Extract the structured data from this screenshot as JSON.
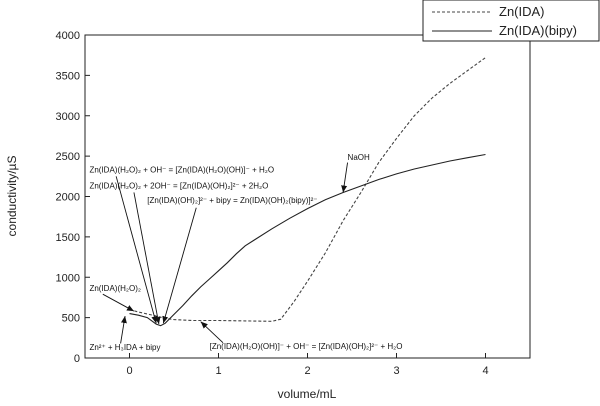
{
  "chart_data": {
    "type": "line",
    "xlabel": "volume/mL",
    "ylabel": "conductivity/µS",
    "xlim": [
      -0.5,
      4.5
    ],
    "ylim": [
      0,
      4000
    ],
    "xticks": [
      0,
      1,
      2,
      3,
      4
    ],
    "yticks": [
      0,
      500,
      1000,
      1500,
      2000,
      2500,
      3000,
      3500,
      4000
    ],
    "grid": false,
    "legend_position": "top-right",
    "series": [
      {
        "name": "Zn(IDA)",
        "style": "dashed",
        "color": "#444444",
        "points": [
          [
            0.0,
            600
          ],
          [
            0.1,
            570
          ],
          [
            0.2,
            545
          ],
          [
            0.3,
            520
          ],
          [
            0.4,
            490
          ],
          [
            0.5,
            475
          ],
          [
            0.7,
            465
          ],
          [
            1.0,
            465
          ],
          [
            1.3,
            460
          ],
          [
            1.6,
            455
          ],
          [
            1.7,
            480
          ],
          [
            1.85,
            700
          ],
          [
            2.0,
            950
          ],
          [
            2.2,
            1300
          ],
          [
            2.4,
            1700
          ],
          [
            2.6,
            2050
          ],
          [
            2.8,
            2420
          ],
          [
            3.0,
            2720
          ],
          [
            3.2,
            3000
          ],
          [
            3.4,
            3220
          ],
          [
            3.6,
            3400
          ],
          [
            3.8,
            3560
          ],
          [
            4.0,
            3720
          ]
        ]
      },
      {
        "name": "Zn(IDA)(bipy)",
        "style": "solid",
        "color": "#222222",
        "points": [
          [
            0.0,
            550
          ],
          [
            0.1,
            530
          ],
          [
            0.2,
            500
          ],
          [
            0.3,
            420
          ],
          [
            0.35,
            400
          ],
          [
            0.4,
            430
          ],
          [
            0.5,
            540
          ],
          [
            0.6,
            650
          ],
          [
            0.7,
            770
          ],
          [
            0.8,
            880
          ],
          [
            0.9,
            980
          ],
          [
            1.0,
            1080
          ],
          [
            1.1,
            1180
          ],
          [
            1.2,
            1290
          ],
          [
            1.3,
            1390
          ],
          [
            1.4,
            1460
          ],
          [
            1.6,
            1600
          ],
          [
            1.8,
            1730
          ],
          [
            2.0,
            1850
          ],
          [
            2.2,
            1960
          ],
          [
            2.4,
            2050
          ],
          [
            2.6,
            2130
          ],
          [
            2.8,
            2210
          ],
          [
            3.0,
            2280
          ],
          [
            3.2,
            2340
          ],
          [
            3.4,
            2390
          ],
          [
            3.6,
            2440
          ],
          [
            3.8,
            2480
          ],
          [
            4.0,
            2520
          ]
        ]
      }
    ],
    "annotations": [
      {
        "text": "NaOH",
        "x": 2.45,
        "y": 2450
      },
      {
        "text": "Zn(IDA)(H₂O)₂ + OH⁻ = [Zn(IDA)(H₂O)(OH)]⁻ + H₂O",
        "x": -0.45,
        "y": 2300
      },
      {
        "text": "Zn(IDA)(H₂O)₂ + 2OH⁻ = [Zn(IDA)(OH)₂]²⁻ + 2H₂O",
        "x": -0.45,
        "y": 2100
      },
      {
        "text": "[Zn(IDA)(OH)₂]²⁻ + bipy = Zn(IDA)(OH)₂(bipy)]²⁻",
        "x": 0.2,
        "y": 1920
      },
      {
        "text": "Zn(IDA)(H₂O)₂",
        "x": -0.45,
        "y": 830
      },
      {
        "text": "Zn²⁺ + H₃IDA + bipy",
        "x": -0.45,
        "y": 100
      },
      {
        "text": "[Zn(IDA)(H₂O)(OH)]⁻ + OH⁻ = [Zn(IDA)(OH)₂]²⁻ + H₂O",
        "x": 0.9,
        "y": 110
      }
    ]
  }
}
